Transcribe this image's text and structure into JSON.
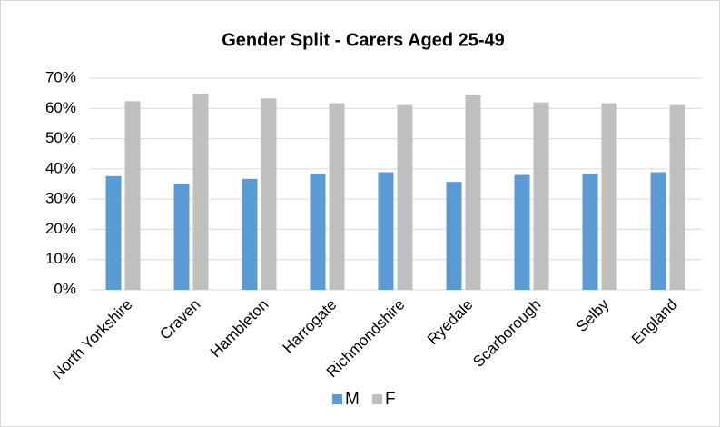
{
  "chart_data": {
    "type": "bar",
    "title": "Gender Split - Carers Aged 25-49",
    "categories": [
      "North Yorkshire",
      "Craven",
      "Hambleton",
      "Harrogate",
      "Richmondshire",
      "Ryedale",
      "Scarborough",
      "Selby",
      "England"
    ],
    "series": [
      {
        "name": "M",
        "color": "#5b9bd5",
        "values": [
          37.6,
          35.1,
          36.7,
          38.3,
          38.9,
          35.7,
          38.0,
          38.3,
          38.9
        ]
      },
      {
        "name": "F",
        "color": "#bfbfbf",
        "values": [
          62.4,
          64.9,
          63.3,
          61.7,
          61.1,
          64.3,
          62.0,
          61.7,
          61.1
        ]
      }
    ],
    "ylim": [
      0,
      70
    ],
    "yticks": [
      {
        "value": 0,
        "label": "0%"
      },
      {
        "value": 10,
        "label": "10%"
      },
      {
        "value": 20,
        "label": "20%"
      },
      {
        "value": 30,
        "label": "30%"
      },
      {
        "value": 40,
        "label": "40%"
      },
      {
        "value": 50,
        "label": "50%"
      },
      {
        "value": 60,
        "label": "60%"
      },
      {
        "value": 70,
        "label": "70%"
      }
    ],
    "grid": true,
    "legend": "bottom"
  }
}
